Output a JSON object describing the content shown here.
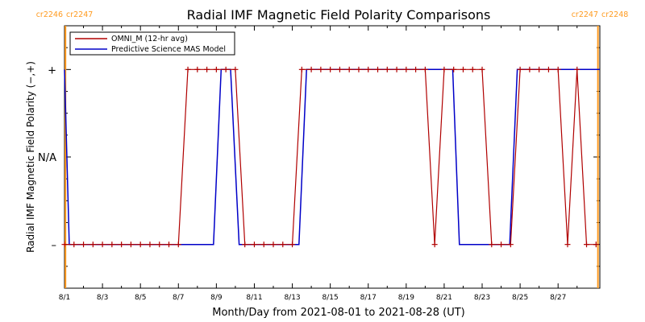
{
  "chart_data": {
    "type": "line",
    "title": "Radial IMF Magnetic Field Polarity Comparisons",
    "xlabel": "Month/Day from 2021-08-01 to 2021-08-28 (UT)",
    "ylabel": "Radial IMF Magnetic Field Polarity (−,+)",
    "x_start": "2021-08-01",
    "x_end": "2021-08-29",
    "xlim_days": [
      0,
      28.2
    ],
    "x_tick_labels": [
      "8/1",
      "8/3",
      "8/5",
      "8/7",
      "8/9",
      "8/11",
      "8/13",
      "8/15",
      "8/17",
      "8/19",
      "8/21",
      "8/23",
      "8/25",
      "8/27"
    ],
    "y_tick_labels": [
      "+",
      "N/A",
      "–"
    ],
    "y_levels": [
      1,
      0,
      -1
    ],
    "ylim": [
      -1.5,
      1.5
    ],
    "grid": false,
    "legend_position": "top-left",
    "carrington_markers": [
      {
        "day": 0.05,
        "left_label": "cr2246",
        "right_label": "cr2247",
        "color": "#ff9a1e"
      },
      {
        "day": 28.1,
        "left_label": "cr2247",
        "right_label": "cr2248",
        "color": "#ff9a1e"
      }
    ],
    "series": [
      {
        "name": "OMNI_M (12-hr avg)",
        "color": "#b00000",
        "marker": "plus",
        "x_days": [
          0,
          0.5,
          1,
          1.5,
          2,
          2.5,
          3,
          3.5,
          4,
          4.5,
          5,
          5.5,
          6,
          6.5,
          7,
          7.5,
          8,
          8.5,
          9,
          9.5,
          10,
          10.5,
          11,
          11.5,
          12,
          12.5,
          13,
          13.5,
          14,
          14.5,
          15,
          15.5,
          16,
          16.5,
          17,
          17.5,
          18,
          18.5,
          19,
          19.5,
          20,
          20.5,
          21,
          21.5,
          22,
          22.5,
          23,
          23.5,
          24,
          24.5,
          25,
          25.5,
          26,
          26.5,
          27,
          27.5,
          28
        ],
        "values": [
          -1,
          -1,
          -1,
          -1,
          -1,
          -1,
          -1,
          -1,
          -1,
          -1,
          -1,
          -1,
          -1,
          1,
          1,
          1,
          1,
          1,
          1,
          -1,
          -1,
          -1,
          -1,
          -1,
          -1,
          1,
          1,
          1,
          1,
          1,
          1,
          1,
          1,
          1,
          1,
          1,
          1,
          1,
          1,
          -1,
          1,
          1,
          1,
          1,
          1,
          -1,
          -1,
          -1,
          1,
          1,
          1,
          1,
          1,
          -1,
          1,
          -1,
          -1
        ]
      },
      {
        "name": "Predictive Science MAS Model",
        "color": "#0000c8",
        "marker": "none",
        "segments": [
          [
            0.0,
            1
          ],
          [
            0.25,
            -1
          ],
          [
            7.85,
            -1
          ],
          [
            8.25,
            1
          ],
          [
            8.75,
            1
          ],
          [
            9.2,
            -1
          ],
          [
            12.35,
            -1
          ],
          [
            12.75,
            1
          ],
          [
            20.45,
            1
          ],
          [
            20.8,
            -1
          ],
          [
            23.45,
            -1
          ],
          [
            23.85,
            1
          ],
          [
            28.2,
            1
          ]
        ]
      }
    ]
  }
}
